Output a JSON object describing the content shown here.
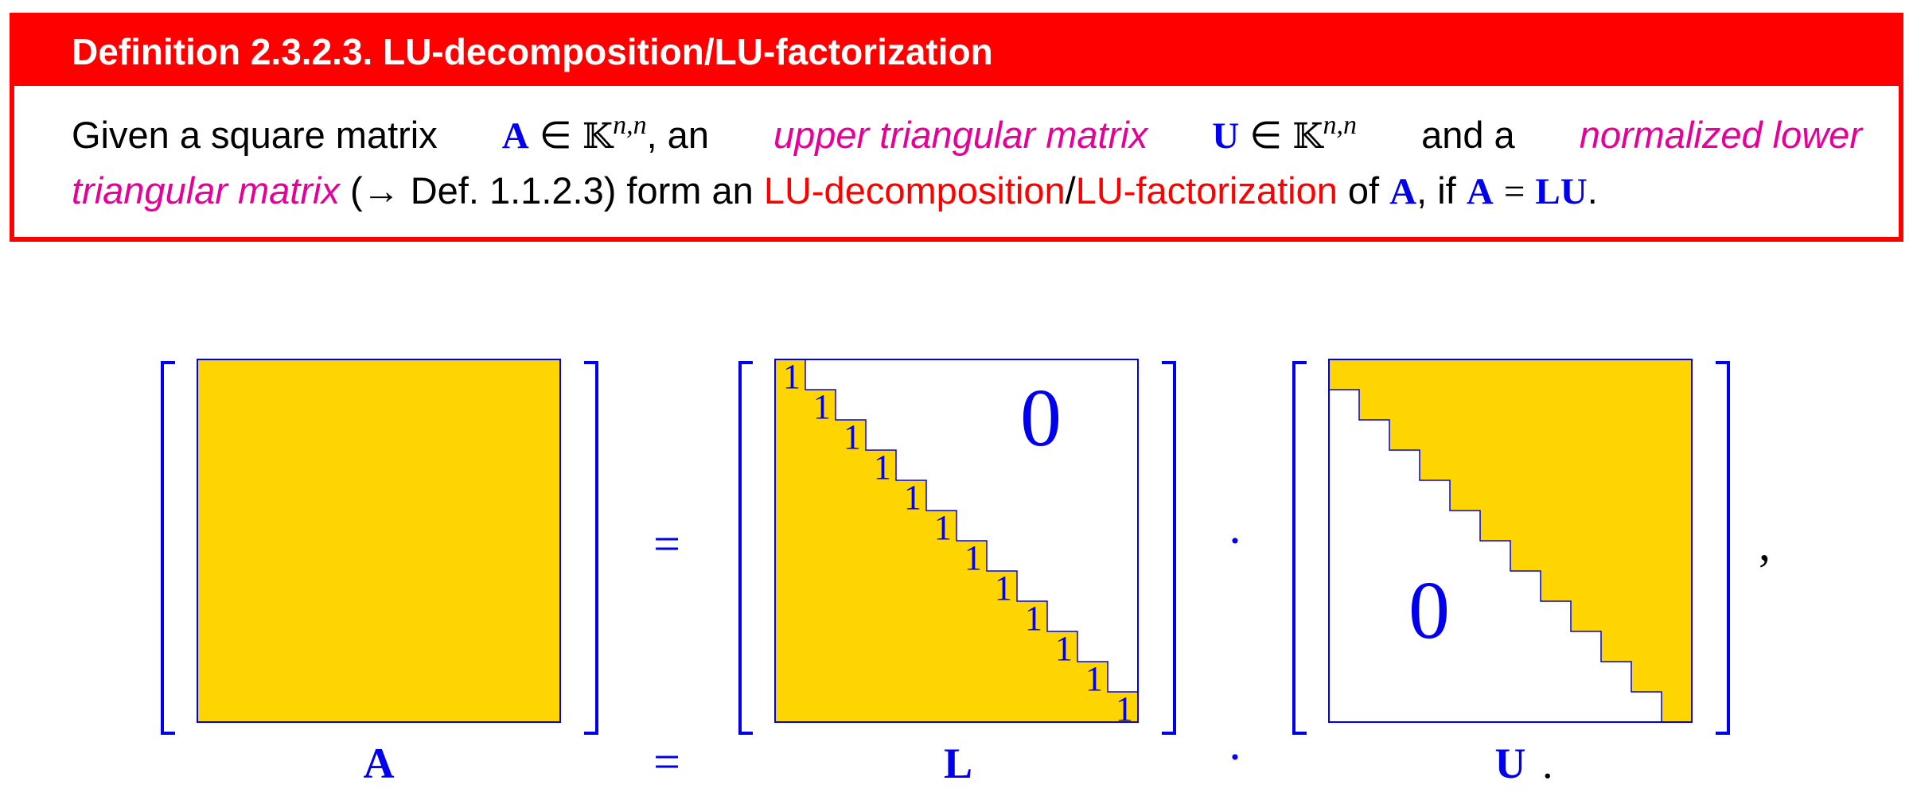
{
  "definition": {
    "title": "Definition 2.3.2.3. LU-decomposition/LU-factorization",
    "text": {
      "given": "Given a square matrix",
      "A": "A",
      "in": "∈",
      "K": "𝕂",
      "nn": "n,n",
      "comma_an": ", an",
      "upper_triangular": "upper triangular matrix",
      "U": "U",
      "and_a": "and a",
      "normalized_lower": "normalized lower",
      "triangular_matrix": "triangular matrix",
      "ref": "(→ Def. 1.1.2.3) form an",
      "lu_decomposition": "LU-decomposition",
      "slash": "/",
      "lu_factorization": "LU-factorization",
      "of": "of",
      "comma_if": ", if",
      "eq": "=",
      "LU": "LU",
      "period": "."
    }
  },
  "figure": {
    "fill_color": "#ffd500",
    "line_color": "#0000ee",
    "L_diagonal_label": "1",
    "L_zero_label": "0",
    "U_zero_label": "0",
    "eq_symbol": "=",
    "dot_symbol": "·",
    "trailing_comma": ",",
    "label_A": "A",
    "label_L": "L",
    "label_U": "U",
    "label_period": "."
  }
}
